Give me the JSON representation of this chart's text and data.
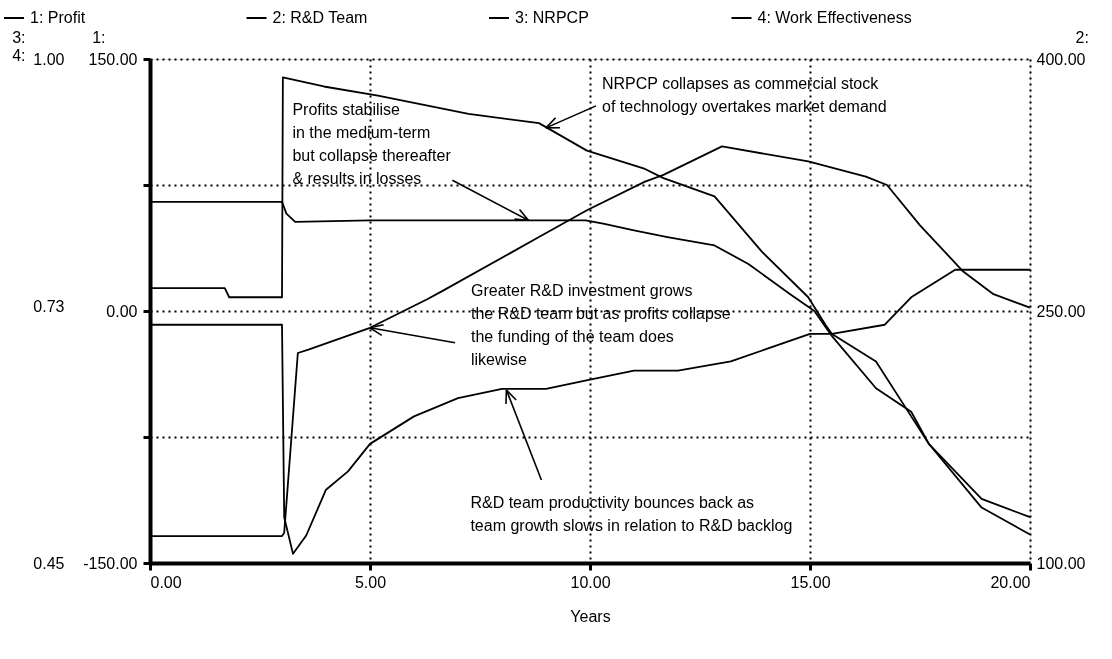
{
  "chart_data": {
    "type": "line",
    "xlabel": "Years",
    "ylabel": "1:",
    "y2label": "2:",
    "y3label": "3:\n4:",
    "xlim": [
      0,
      20
    ],
    "xticks": [
      {
        "value": 0,
        "label": "0.00"
      },
      {
        "value": 5,
        "label": "5.00"
      },
      {
        "value": 10,
        "label": "10.00"
      },
      {
        "value": 15,
        "label": "15.00"
      },
      {
        "value": 20,
        "label": "20.00"
      }
    ],
    "ylim": [
      -150,
      150
    ],
    "yticks": [
      {
        "value": -150,
        "label": "-150.00"
      },
      {
        "value": -75,
        "label": null
      },
      {
        "value": 0,
        "label": "0.00"
      },
      {
        "value": 75,
        "label": null
      },
      {
        "value": 150,
        "label": "150.00"
      }
    ],
    "y2lim": [
      100,
      400
    ],
    "y2ticks": [
      {
        "value": 100,
        "label": "100.00"
      },
      {
        "value": 250,
        "label": "250.00"
      },
      {
        "value": 400,
        "label": "400.00"
      }
    ],
    "y3lim": [
      0.45,
      1.0
    ],
    "y3ticks": [
      {
        "value": 0.45,
        "label": "0.45"
      },
      {
        "value": 0.73,
        "label": "0.73"
      },
      {
        "value": 1.0,
        "label": "1.00"
      }
    ],
    "grid": true,
    "legend": "top",
    "line_style": "solid",
    "series": [
      {
        "name": "1: Profit",
        "color": "#000000",
        "axis": "y",
        "x": [
          0,
          3,
          3.1,
          3.3,
          5,
          7,
          9,
          9.9,
          10.3,
          11,
          11.76,
          12.83,
          13.6,
          14.55,
          15.1,
          15.5,
          16.5,
          17.3,
          17.7,
          18.9,
          20
        ],
        "values": [
          65,
          65,
          58,
          53,
          54,
          54,
          54,
          54,
          52,
          48,
          44,
          39,
          28,
          10,
          0,
          -15,
          -46,
          -60,
          -79,
          -117,
          -133
        ]
      },
      {
        "name": "2: R&D Team",
        "color": "#000000",
        "axis": "y2",
        "x": [
          0,
          3,
          3.05,
          3.36,
          3.6,
          5,
          6.3,
          6.65,
          8.84,
          9.93,
          11.25,
          11.67,
          13,
          14.96,
          16.27,
          16.75,
          17.5,
          18.25,
          18.46,
          19.17,
          20
        ],
        "values": [
          116,
          116,
          118,
          225,
          227,
          240,
          257,
          262,
          294,
          310,
          327,
          331,
          348,
          339,
          330,
          325,
          301,
          280,
          274,
          260,
          252
        ]
      },
      {
        "name": "3: NRPCP",
        "color": "#000000",
        "axis": "y3",
        "x": [
          0,
          1.7,
          1.8,
          3,
          3.02,
          3.95,
          5.18,
          7.24,
          8.84,
          9.93,
          11.25,
          11.67,
          12.83,
          13.9,
          14.96,
          15.35,
          15.5,
          16.5,
          17.3,
          17.7,
          18.9,
          20
        ],
        "values": [
          0.75,
          0.75,
          0.74,
          0.74,
          0.98,
          0.97,
          0.96,
          0.94,
          0.93,
          0.9,
          0.88,
          0.87,
          0.85,
          0.79,
          0.74,
          0.71,
          0.7,
          0.67,
          0.61,
          0.58,
          0.52,
          0.5
        ]
      },
      {
        "name": "4: Work Effectiveness",
        "color": "#000000",
        "axis": "y3",
        "x": [
          0,
          3,
          3.05,
          3.25,
          3.55,
          4,
          4.5,
          5,
          6,
          7,
          8,
          9,
          10,
          11,
          12,
          13.2,
          15,
          15.5,
          16.7,
          17.3,
          18.3,
          18.6,
          19.2,
          20
        ],
        "values": [
          0.71,
          0.71,
          0.5,
          0.46,
          0.48,
          0.53,
          0.55,
          0.58,
          0.61,
          0.63,
          0.64,
          0.64,
          0.65,
          0.66,
          0.66,
          0.67,
          0.7,
          0.7,
          0.71,
          0.74,
          0.77,
          0.77,
          0.77,
          0.77
        ]
      }
    ],
    "annotations": [
      {
        "text": "NRPCP collapses as commercial stock\nof technology overtakes market demand",
        "x": 9.0,
        "y": 109
      },
      {
        "text": "Profits stabilise\nin the medium-term\nbut collapse thereafter\n& results in losses",
        "x": 8.6,
        "y": 54
      },
      {
        "text": "Greater R&D investment grows\nthe R&D team but as profits collapse\nthe funding of the team does\nlikewise",
        "x": 5.0,
        "y": -10
      },
      {
        "text": "R&D team productivity bounces back as\nteam growth slows in relation to R&D backlog",
        "x": 8.1,
        "y": -47
      }
    ]
  }
}
